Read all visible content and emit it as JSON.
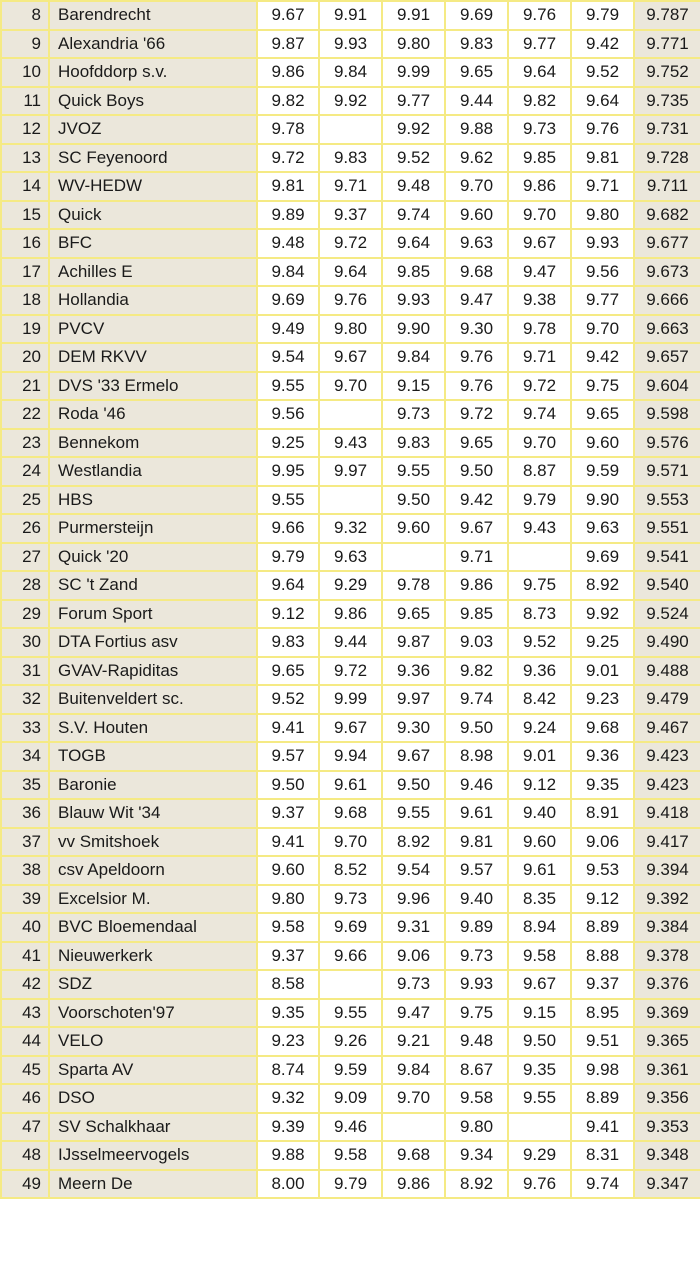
{
  "rows": [
    {
      "rank": "8",
      "club": "Barendrecht",
      "scores": [
        "9.67",
        "9.91",
        "9.91",
        "9.69",
        "9.76",
        "9.79"
      ],
      "total": "9.787"
    },
    {
      "rank": "9",
      "club": "Alexandria '66",
      "scores": [
        "9.87",
        "9.93",
        "9.80",
        "9.83",
        "9.77",
        "9.42"
      ],
      "total": "9.771"
    },
    {
      "rank": "10",
      "club": "Hoofddorp s.v.",
      "scores": [
        "9.86",
        "9.84",
        "9.99",
        "9.65",
        "9.64",
        "9.52"
      ],
      "total": "9.752"
    },
    {
      "rank": "11",
      "club": "Quick Boys",
      "scores": [
        "9.82",
        "9.92",
        "9.77",
        "9.44",
        "9.82",
        "9.64"
      ],
      "total": "9.735"
    },
    {
      "rank": "12",
      "club": "JVOZ",
      "scores": [
        "9.78",
        "",
        "9.92",
        "9.88",
        "9.73",
        "9.76"
      ],
      "total": "9.731"
    },
    {
      "rank": "13",
      "club": "SC Feyenoord",
      "scores": [
        "9.72",
        "9.83",
        "9.52",
        "9.62",
        "9.85",
        "9.81"
      ],
      "total": "9.728"
    },
    {
      "rank": "14",
      "club": "WV-HEDW",
      "scores": [
        "9.81",
        "9.71",
        "9.48",
        "9.70",
        "9.86",
        "9.71"
      ],
      "total": "9.711"
    },
    {
      "rank": "15",
      "club": "Quick",
      "scores": [
        "9.89",
        "9.37",
        "9.74",
        "9.60",
        "9.70",
        "9.80"
      ],
      "total": "9.682"
    },
    {
      "rank": "16",
      "club": "BFC",
      "scores": [
        "9.48",
        "9.72",
        "9.64",
        "9.63",
        "9.67",
        "9.93"
      ],
      "total": "9.677"
    },
    {
      "rank": "17",
      "club": "Achilles E",
      "scores": [
        "9.84",
        "9.64",
        "9.85",
        "9.68",
        "9.47",
        "9.56"
      ],
      "total": "9.673"
    },
    {
      "rank": "18",
      "club": "Hollandia",
      "scores": [
        "9.69",
        "9.76",
        "9.93",
        "9.47",
        "9.38",
        "9.77"
      ],
      "total": "9.666"
    },
    {
      "rank": "19",
      "club": "PVCV",
      "scores": [
        "9.49",
        "9.80",
        "9.90",
        "9.30",
        "9.78",
        "9.70"
      ],
      "total": "9.663"
    },
    {
      "rank": "20",
      "club": "DEM RKVV",
      "scores": [
        "9.54",
        "9.67",
        "9.84",
        "9.76",
        "9.71",
        "9.42"
      ],
      "total": "9.657"
    },
    {
      "rank": "21",
      "club": "DVS '33 Ermelo",
      "scores": [
        "9.55",
        "9.70",
        "9.15",
        "9.76",
        "9.72",
        "9.75"
      ],
      "total": "9.604"
    },
    {
      "rank": "22",
      "club": "Roda '46",
      "scores": [
        "9.56",
        "",
        "9.73",
        "9.72",
        "9.74",
        "9.65"
      ],
      "total": "9.598"
    },
    {
      "rank": "23",
      "club": "Bennekom",
      "scores": [
        "9.25",
        "9.43",
        "9.83",
        "9.65",
        "9.70",
        "9.60"
      ],
      "total": "9.576"
    },
    {
      "rank": "24",
      "club": "Westlandia",
      "scores": [
        "9.95",
        "9.97",
        "9.55",
        "9.50",
        "8.87",
        "9.59"
      ],
      "total": "9.571"
    },
    {
      "rank": "25",
      "club": "HBS",
      "scores": [
        "9.55",
        "",
        "9.50",
        "9.42",
        "9.79",
        "9.90"
      ],
      "total": "9.553"
    },
    {
      "rank": "26",
      "club": "Purmersteijn",
      "scores": [
        "9.66",
        "9.32",
        "9.60",
        "9.67",
        "9.43",
        "9.63"
      ],
      "total": "9.551"
    },
    {
      "rank": "27",
      "club": "Quick '20",
      "scores": [
        "9.79",
        "9.63",
        "",
        "9.71",
        "",
        "9.69"
      ],
      "total": "9.541"
    },
    {
      "rank": "28",
      "club": "SC 't Zand",
      "scores": [
        "9.64",
        "9.29",
        "9.78",
        "9.86",
        "9.75",
        "8.92"
      ],
      "total": "9.540"
    },
    {
      "rank": "29",
      "club": "Forum Sport",
      "scores": [
        "9.12",
        "9.86",
        "9.65",
        "9.85",
        "8.73",
        "9.92"
      ],
      "total": "9.524"
    },
    {
      "rank": "30",
      "club": "DTA Fortius asv",
      "scores": [
        "9.83",
        "9.44",
        "9.87",
        "9.03",
        "9.52",
        "9.25"
      ],
      "total": "9.490"
    },
    {
      "rank": "31",
      "club": "GVAV-Rapiditas",
      "scores": [
        "9.65",
        "9.72",
        "9.36",
        "9.82",
        "9.36",
        "9.01"
      ],
      "total": "9.488"
    },
    {
      "rank": "32",
      "club": "Buitenveldert sc.",
      "scores": [
        "9.52",
        "9.99",
        "9.97",
        "9.74",
        "8.42",
        "9.23"
      ],
      "total": "9.479"
    },
    {
      "rank": "33",
      "club": "S.V. Houten",
      "scores": [
        "9.41",
        "9.67",
        "9.30",
        "9.50",
        "9.24",
        "9.68"
      ],
      "total": "9.467"
    },
    {
      "rank": "34",
      "club": "TOGB",
      "scores": [
        "9.57",
        "9.94",
        "9.67",
        "8.98",
        "9.01",
        "9.36"
      ],
      "total": "9.423"
    },
    {
      "rank": "35",
      "club": "Baronie",
      "scores": [
        "9.50",
        "9.61",
        "9.50",
        "9.46",
        "9.12",
        "9.35"
      ],
      "total": "9.423"
    },
    {
      "rank": "36",
      "club": "Blauw Wit '34",
      "scores": [
        "9.37",
        "9.68",
        "9.55",
        "9.61",
        "9.40",
        "8.91"
      ],
      "total": "9.418"
    },
    {
      "rank": "37",
      "club": "vv Smitshoek",
      "scores": [
        "9.41",
        "9.70",
        "8.92",
        "9.81",
        "9.60",
        "9.06"
      ],
      "total": "9.417"
    },
    {
      "rank": "38",
      "club": "csv Apeldoorn",
      "scores": [
        "9.60",
        "8.52",
        "9.54",
        "9.57",
        "9.61",
        "9.53"
      ],
      "total": "9.394"
    },
    {
      "rank": "39",
      "club": "Excelsior M.",
      "scores": [
        "9.80",
        "9.73",
        "9.96",
        "9.40",
        "8.35",
        "9.12"
      ],
      "total": "9.392"
    },
    {
      "rank": "40",
      "club": "BVC Bloemendaal",
      "scores": [
        "9.58",
        "9.69",
        "9.31",
        "9.89",
        "8.94",
        "8.89"
      ],
      "total": "9.384"
    },
    {
      "rank": "41",
      "club": "Nieuwerkerk",
      "scores": [
        "9.37",
        "9.66",
        "9.06",
        "9.73",
        "9.58",
        "8.88"
      ],
      "total": "9.378"
    },
    {
      "rank": "42",
      "club": "SDZ",
      "scores": [
        "8.58",
        "",
        "9.73",
        "9.93",
        "9.67",
        "9.37"
      ],
      "total": "9.376"
    },
    {
      "rank": "43",
      "club": "Voorschoten'97",
      "scores": [
        "9.35",
        "9.55",
        "9.47",
        "9.75",
        "9.15",
        "8.95"
      ],
      "total": "9.369"
    },
    {
      "rank": "44",
      "club": "VELO",
      "scores": [
        "9.23",
        "9.26",
        "9.21",
        "9.48",
        "9.50",
        "9.51"
      ],
      "total": "9.365"
    },
    {
      "rank": "45",
      "club": "Sparta AV",
      "scores": [
        "8.74",
        "9.59",
        "9.84",
        "8.67",
        "9.35",
        "9.98"
      ],
      "total": "9.361"
    },
    {
      "rank": "46",
      "club": "DSO",
      "scores": [
        "9.32",
        "9.09",
        "9.70",
        "9.58",
        "9.55",
        "8.89"
      ],
      "total": "9.356"
    },
    {
      "rank": "47",
      "club": "SV Schalkhaar",
      "scores": [
        "9.39",
        "9.46",
        "",
        "9.80",
        "",
        "9.41"
      ],
      "total": "9.353"
    },
    {
      "rank": "48",
      "club": "IJsselmeervogels",
      "scores": [
        "9.88",
        "9.58",
        "9.68",
        "9.34",
        "9.29",
        "8.31"
      ],
      "total": "9.348"
    },
    {
      "rank": "49",
      "club": "Meern De",
      "scores": [
        "8.00",
        "9.79",
        "9.86",
        "8.92",
        "9.76",
        "9.74"
      ],
      "total": "9.347"
    }
  ],
  "colors": {
    "grid_border": "#f5ea84",
    "shaded_cell": "#ebe7db",
    "score_cell": "#ffffff",
    "text": "#1a1a1a"
  }
}
